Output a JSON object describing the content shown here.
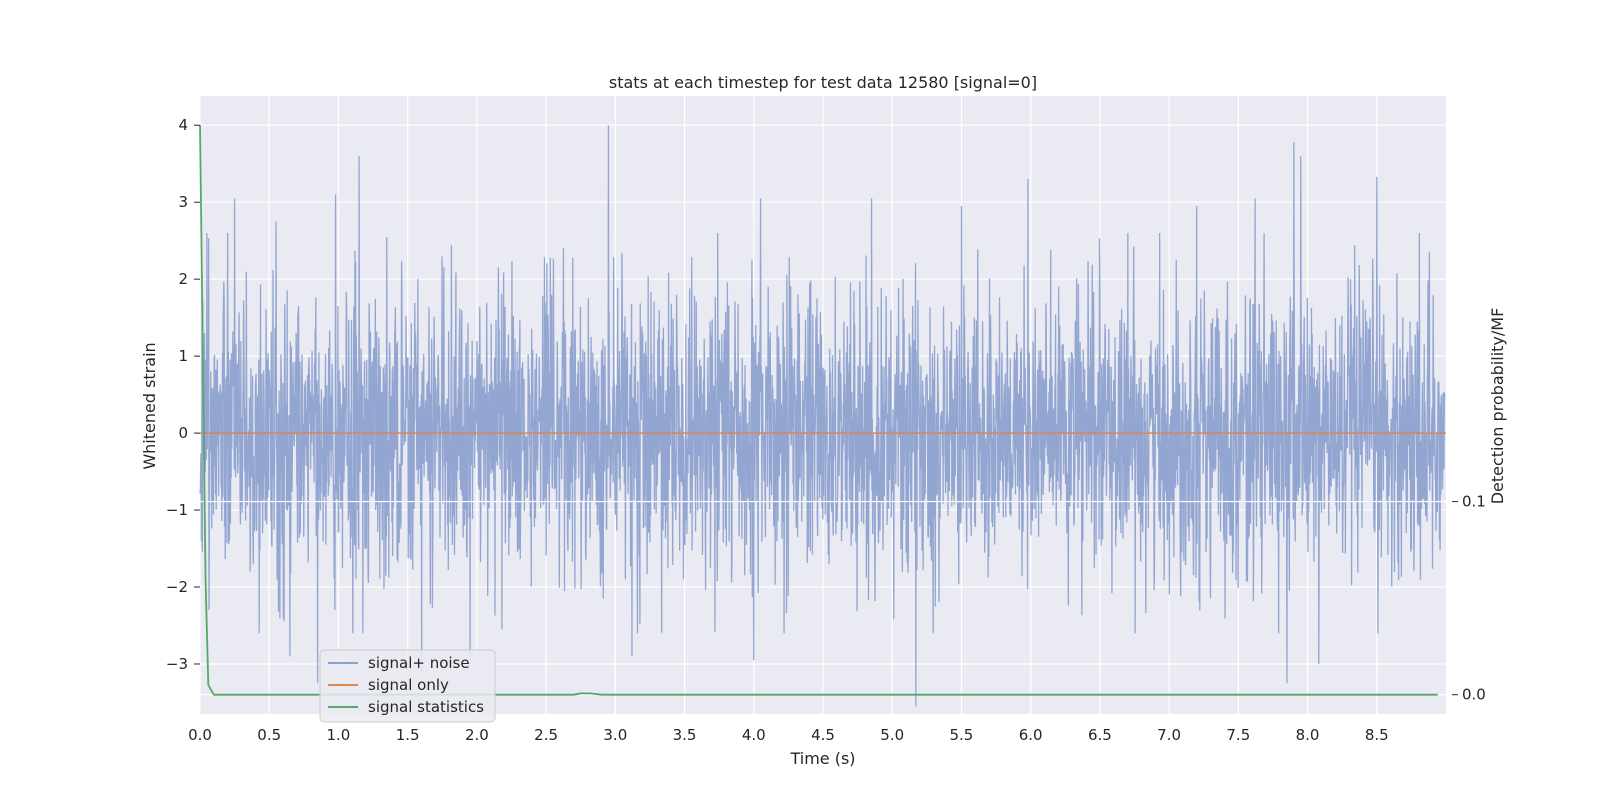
{
  "chart_data": {
    "type": "line",
    "title": "stats at each timestep for test data 12580 [signal=0]",
    "xlabel": "Time (s)",
    "ylabel": "Whitened strain",
    "y2label": "Detection probability/MF",
    "xlim": [
      0.0,
      9.0
    ],
    "ylim": [
      -3.65,
      4.38
    ],
    "y2lim": [
      -0.01,
      0.31
    ],
    "x_ticks": [
      0.0,
      0.5,
      1.0,
      1.5,
      2.0,
      2.5,
      3.0,
      3.5,
      4.0,
      4.5,
      5.0,
      5.5,
      6.0,
      6.5,
      7.0,
      7.5,
      8.0,
      8.5
    ],
    "x_tick_labels": [
      "0.0",
      "0.5",
      "1.0",
      "1.5",
      "2.0",
      "2.5",
      "3.0",
      "3.5",
      "4.0",
      "4.5",
      "5.0",
      "5.5",
      "6.0",
      "6.5",
      "7.0",
      "7.5",
      "8.0",
      "8.5"
    ],
    "y_ticks": [
      4,
      3,
      2,
      1,
      0,
      -1,
      -2,
      -3
    ],
    "y_tick_labels": [
      "4",
      "3",
      "2",
      "1",
      "0",
      "−1",
      "−2",
      "−3"
    ],
    "y2_ticks": [
      0.1,
      0.0
    ],
    "y2_tick_labels": [
      "0.1",
      "0.0"
    ],
    "grid": true,
    "legend_position": "lower-left",
    "series": [
      {
        "name": "signal+ noise",
        "color": "#8ea2cf",
        "kind": "noise",
        "peaks": [
          [
            0.05,
            2.6
          ],
          [
            0.25,
            3.05
          ],
          [
            0.55,
            2.75
          ],
          [
            0.98,
            3.1
          ],
          [
            1.15,
            3.6
          ],
          [
            1.35,
            2.55
          ],
          [
            2.18,
            2.6
          ],
          [
            2.95,
            4.0
          ],
          [
            4.05,
            3.05
          ],
          [
            4.85,
            3.05
          ],
          [
            5.5,
            2.95
          ],
          [
            5.98,
            3.3
          ],
          [
            7.2,
            2.95
          ],
          [
            7.62,
            3.05
          ],
          [
            7.9,
            3.78
          ],
          [
            7.95,
            3.6
          ],
          [
            8.5,
            3.33
          ],
          [
            8.88,
            2.35
          ],
          [
            0.65,
            -2.9
          ],
          [
            0.85,
            -3.25
          ],
          [
            1.6,
            -3.1
          ],
          [
            1.95,
            -3.0
          ],
          [
            2.18,
            -2.55
          ],
          [
            3.12,
            -2.9
          ],
          [
            4.0,
            -2.95
          ],
          [
            5.17,
            -3.55
          ],
          [
            7.85,
            -3.25
          ],
          [
            8.08,
            -3.0
          ]
        ]
      },
      {
        "name": "signal only",
        "color": "#dd8452",
        "x": [
          0.0,
          9.0
        ],
        "y": [
          0,
          0
        ]
      },
      {
        "name": "signal statistics",
        "color": "#55a868",
        "axis": "right",
        "x": [
          0.0,
          0.02,
          0.04,
          0.06,
          0.1,
          0.5,
          1.0,
          2.0,
          2.7,
          2.75,
          2.82,
          2.9,
          3.0,
          5.0,
          7.0,
          8.94
        ],
        "y": [
          0.295,
          0.18,
          0.06,
          0.005,
          0.0,
          0.0,
          0.0,
          0.0,
          0.0,
          0.0007,
          0.0007,
          0.0,
          0.0,
          0.0,
          0.0,
          0.0
        ]
      }
    ]
  }
}
